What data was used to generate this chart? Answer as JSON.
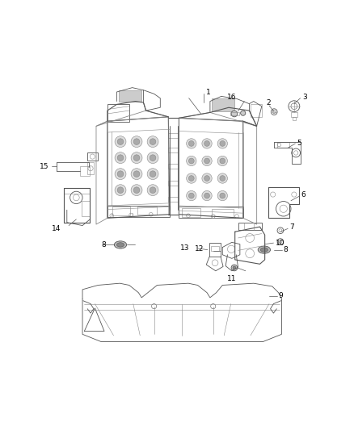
{
  "bg_color": "#ffffff",
  "lc": "#888888",
  "lc_dark": "#555555",
  "lc_light": "#aaaaaa",
  "figsize": [
    4.38,
    5.33
  ],
  "dpi": 100,
  "label_fs": 6.5,
  "leader_color": "#555555"
}
